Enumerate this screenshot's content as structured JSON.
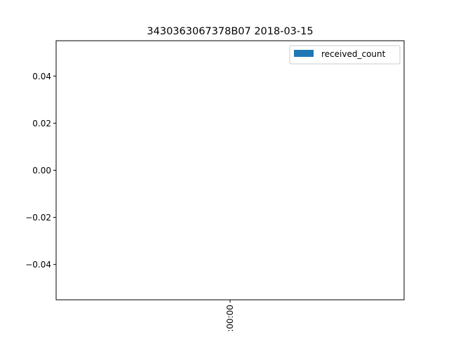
{
  "chart_data": {
    "type": "bar",
    "title": "3430363067378B07 2018-03-15",
    "xlabel": "",
    "ylabel": "",
    "categories": [
      ":00:00"
    ],
    "series": [
      {
        "name": "received_count",
        "values": [
          0
        ],
        "color": "#1f77b4"
      }
    ],
    "ylim": [
      -0.055,
      0.055
    ],
    "yticks": [
      {
        "value": 0.04,
        "label": "0.04"
      },
      {
        "value": 0.02,
        "label": "0.02"
      },
      {
        "value": 0.0,
        "label": "0.00"
      },
      {
        "value": -0.02,
        "label": "−0.02"
      },
      {
        "value": -0.04,
        "label": "−0.04"
      }
    ],
    "grid": false,
    "legend": "top-right"
  }
}
